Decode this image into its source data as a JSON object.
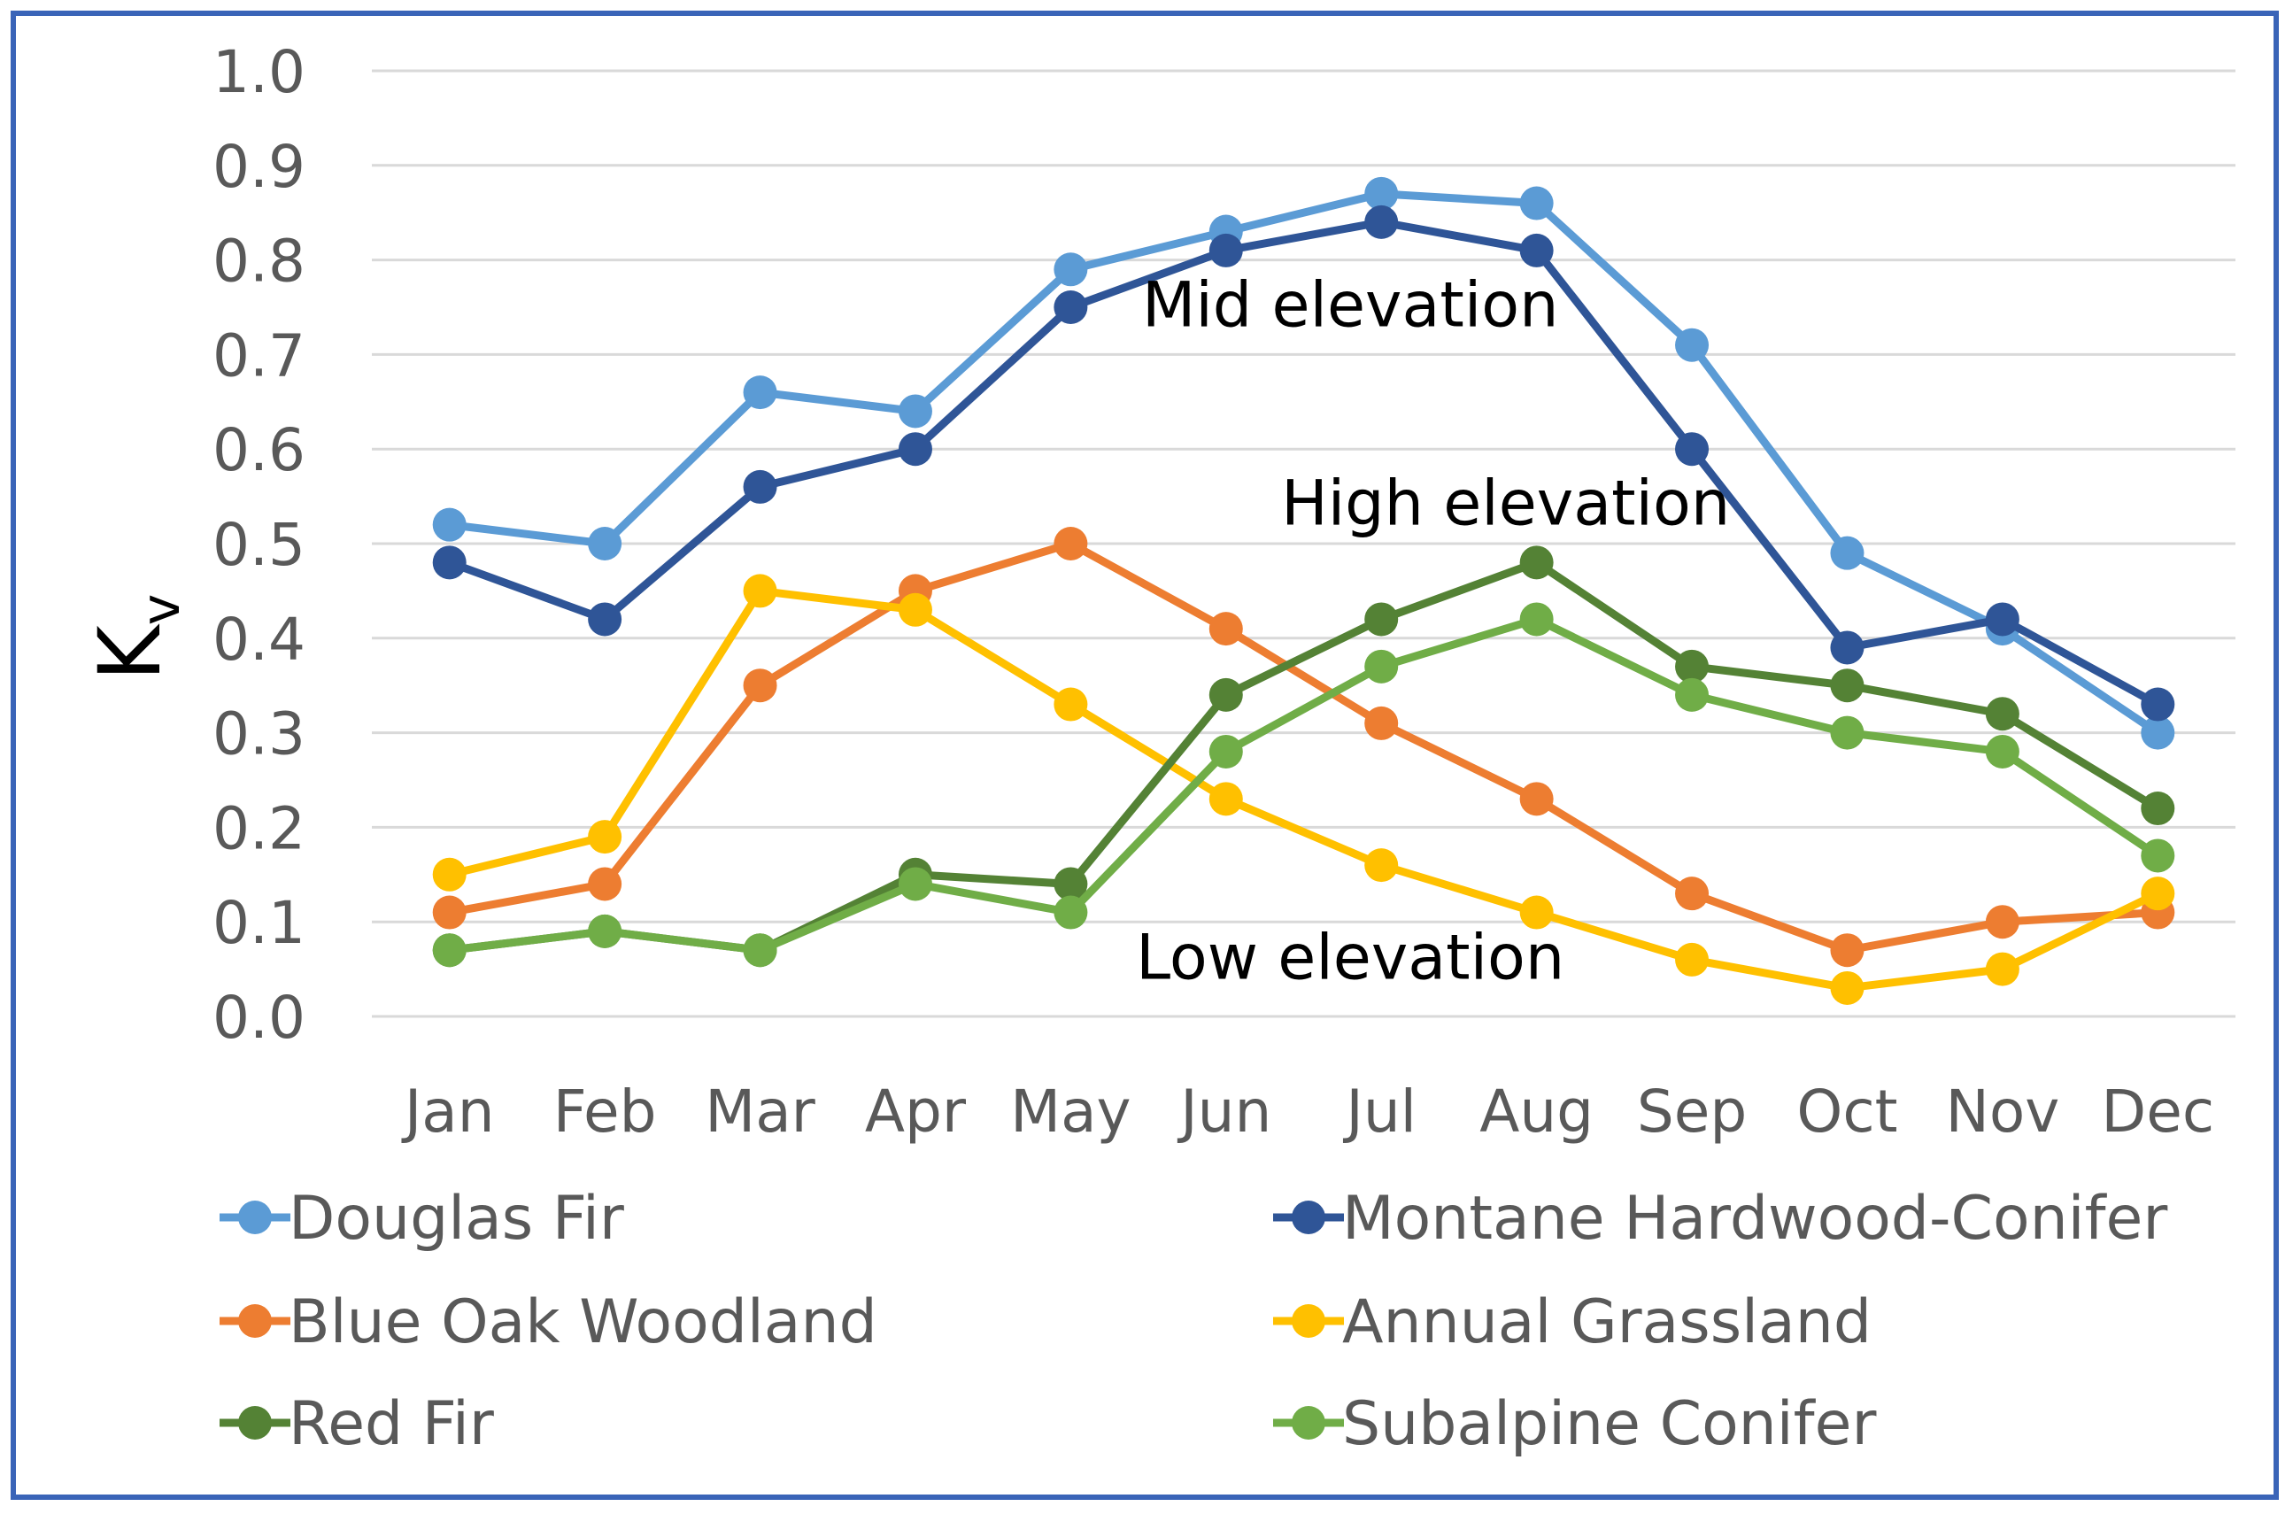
{
  "chart_data": {
    "type": "line",
    "title": "",
    "xlabel": "",
    "ylabel": "K",
    "ylabel_subscript": "v",
    "ylim": [
      0,
      1
    ],
    "yticks": [
      "0.0",
      "0.1",
      "0.2",
      "0.3",
      "0.4",
      "0.5",
      "0.6",
      "0.7",
      "0.8",
      "0.9",
      "1.0"
    ],
    "categories": [
      "Jan",
      "Feb",
      "Mar",
      "Apr",
      "May",
      "Jun",
      "Jul",
      "Aug",
      "Sep",
      "Oct",
      "Nov",
      "Dec"
    ],
    "grid": true,
    "legend_position": "bottom",
    "series": [
      {
        "name": "Douglas Fir",
        "color": "#5b9bd5",
        "values": [
          0.52,
          0.5,
          0.66,
          0.64,
          0.79,
          0.83,
          0.87,
          0.86,
          0.71,
          0.49,
          0.41,
          0.3
        ]
      },
      {
        "name": "Montane Hardwood-Conifer",
        "color": "#2f5597",
        "values": [
          0.48,
          0.42,
          0.56,
          0.6,
          0.75,
          0.81,
          0.84,
          0.81,
          0.6,
          0.39,
          0.42,
          0.33
        ]
      },
      {
        "name": "Blue Oak Woodland",
        "color": "#ed7d31",
        "values": [
          0.11,
          0.14,
          0.35,
          0.45,
          0.5,
          0.41,
          0.31,
          0.23,
          0.13,
          0.07,
          0.1,
          0.11
        ]
      },
      {
        "name": "Annual Grassland",
        "color": "#ffc000",
        "values": [
          0.15,
          0.19,
          0.45,
          0.43,
          0.33,
          0.23,
          0.16,
          0.11,
          0.06,
          0.03,
          0.05,
          0.13
        ]
      },
      {
        "name": "Red Fir",
        "color": "#548235",
        "values": [
          0.07,
          0.09,
          0.07,
          0.15,
          0.14,
          0.34,
          0.42,
          0.48,
          0.37,
          0.35,
          0.32,
          0.22
        ]
      },
      {
        "name": "Subalpine Conifer",
        "color": "#70ad47",
        "values": [
          0.07,
          0.09,
          0.07,
          0.14,
          0.11,
          0.28,
          0.37,
          0.42,
          0.34,
          0.3,
          0.28,
          0.17
        ]
      }
    ],
    "annotations": [
      {
        "text": "Mid elevation",
        "x": "Jul",
        "y": 0.73
      },
      {
        "text": "High elevation",
        "x": "Aug",
        "y": 0.52
      },
      {
        "text": "Low elevation",
        "x": "Jul",
        "y": 0.04
      }
    ]
  }
}
